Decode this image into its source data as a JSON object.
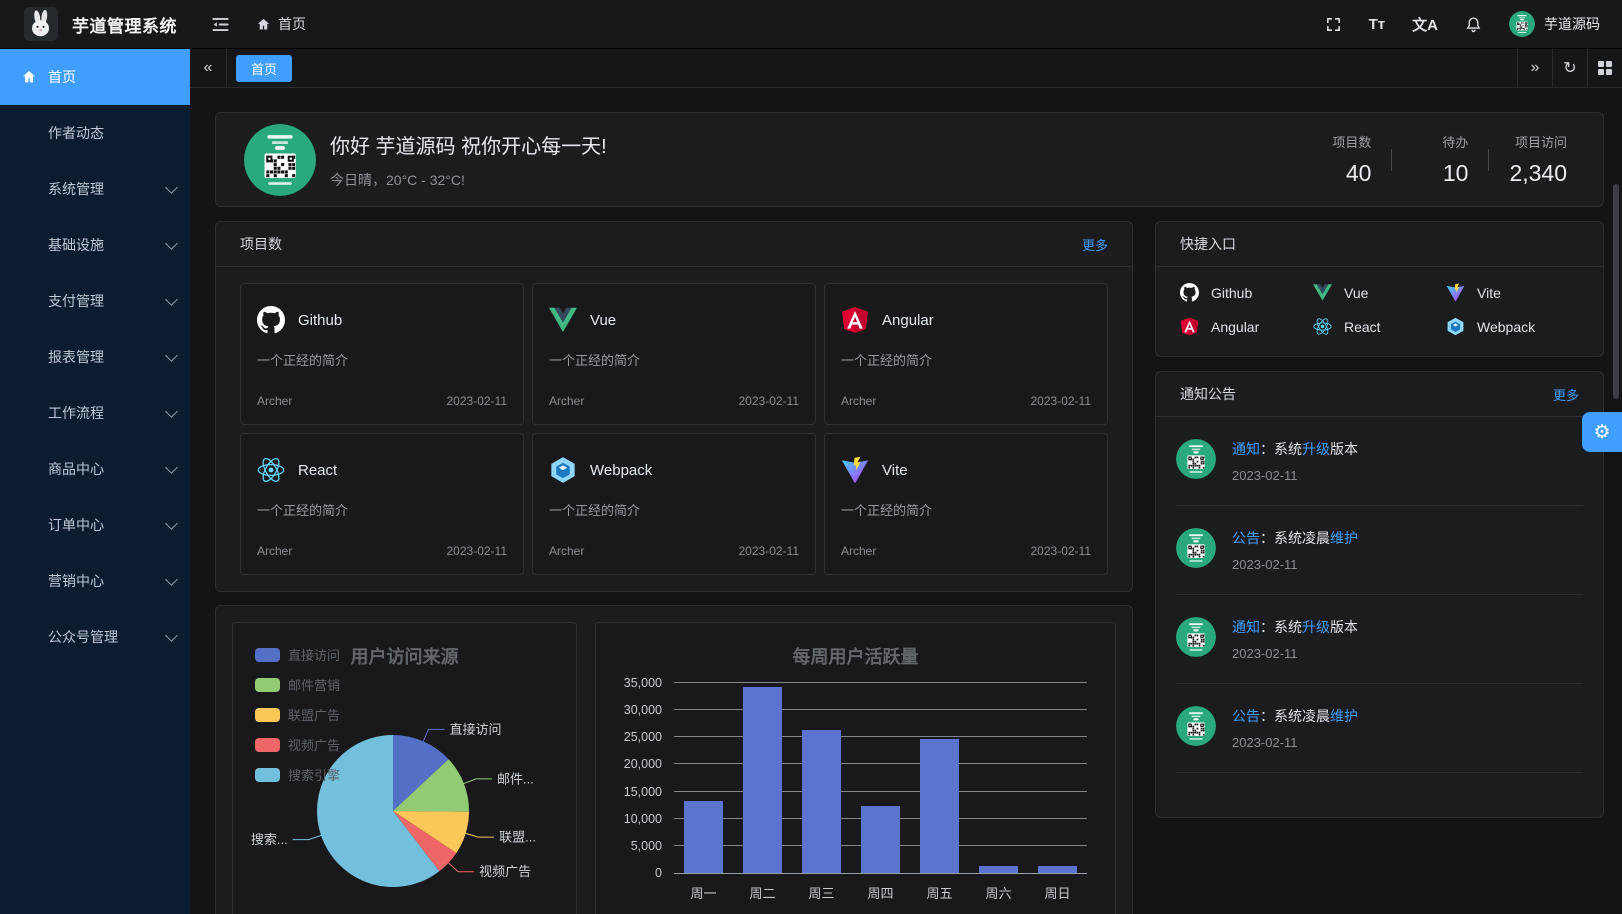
{
  "topbar": {
    "title": "芋道管理系统",
    "breadcrumb_home": "首页",
    "username": "芋道源码",
    "font_icon_text": "Tᴛ",
    "lang_icon_text": "文A"
  },
  "glyphs": {
    "collapse": "«",
    "expand": "»",
    "refresh": "↻",
    "gear": "⚙"
  },
  "sidebar": {
    "items": [
      {
        "label": "首页",
        "icon": "home",
        "active": true,
        "chevron": false
      },
      {
        "label": "作者动态",
        "icon": "",
        "active": false,
        "chevron": false
      },
      {
        "label": "系统管理",
        "icon": "",
        "active": false,
        "chevron": true
      },
      {
        "label": "基础设施",
        "icon": "",
        "active": false,
        "chevron": true
      },
      {
        "label": "支付管理",
        "icon": "",
        "active": false,
        "chevron": true
      },
      {
        "label": "报表管理",
        "icon": "",
        "active": false,
        "chevron": true
      },
      {
        "label": "工作流程",
        "icon": "",
        "active": false,
        "chevron": true
      },
      {
        "label": "商品中心",
        "icon": "",
        "active": false,
        "chevron": true
      },
      {
        "label": "订单中心",
        "icon": "",
        "active": false,
        "chevron": true
      },
      {
        "label": "营销中心",
        "icon": "",
        "active": false,
        "chevron": true
      },
      {
        "label": "公众号管理",
        "icon": "",
        "active": false,
        "chevron": true
      }
    ]
  },
  "tabbar": {
    "active_tab": "首页"
  },
  "welcome": {
    "greeting": "你好 芋道源码 祝你开心每一天!",
    "weather": "今日晴，20°C - 32°C!",
    "stats": [
      {
        "label": "项目数",
        "value": "40"
      },
      {
        "label": "待办",
        "value": "10"
      },
      {
        "label": "项目访问",
        "value": "2,340"
      }
    ]
  },
  "projects": {
    "title": "项目数",
    "more_label": "更多",
    "items": [
      {
        "name": "Github",
        "icon": "github",
        "desc": "一个正经的简介",
        "author": "Archer",
        "date": "2023-02-11"
      },
      {
        "name": "Vue",
        "icon": "vue",
        "desc": "一个正经的简介",
        "author": "Archer",
        "date": "2023-02-11"
      },
      {
        "name": "Angular",
        "icon": "angular",
        "desc": "一个正经的简介",
        "author": "Archer",
        "date": "2023-02-11"
      },
      {
        "name": "React",
        "icon": "react",
        "desc": "一个正经的简介",
        "author": "Archer",
        "date": "2023-02-11"
      },
      {
        "name": "Webpack",
        "icon": "webpack",
        "desc": "一个正经的简介",
        "author": "Archer",
        "date": "2023-02-11"
      },
      {
        "name": "Vite",
        "icon": "vite",
        "desc": "一个正经的简介",
        "author": "Archer",
        "date": "2023-02-11"
      }
    ]
  },
  "shortcuts": {
    "title": "快捷入口",
    "items": [
      {
        "name": "Github",
        "icon": "github"
      },
      {
        "name": "Vue",
        "icon": "vue"
      },
      {
        "name": "Vite",
        "icon": "vite"
      },
      {
        "name": "Angular",
        "icon": "angular"
      },
      {
        "name": "React",
        "icon": "react"
      },
      {
        "name": "Webpack",
        "icon": "webpack"
      }
    ]
  },
  "notices": {
    "title": "通知公告",
    "more_label": "更多",
    "items": [
      {
        "segments": [
          {
            "text": "通知",
            "highlight": true
          },
          {
            "text": "：系统",
            "highlight": false
          },
          {
            "text": "升级",
            "highlight": true
          },
          {
            "text": "版本",
            "highlight": false
          }
        ],
        "date": "2023-02-11"
      },
      {
        "segments": [
          {
            "text": "公告",
            "highlight": true
          },
          {
            "text": "：系统凌晨",
            "highlight": false
          },
          {
            "text": "维护",
            "highlight": true
          }
        ],
        "date": "2023-02-11"
      },
      {
        "segments": [
          {
            "text": "通知",
            "highlight": true
          },
          {
            "text": "：系统",
            "highlight": false
          },
          {
            "text": "升级",
            "highlight": true
          },
          {
            "text": "版本",
            "highlight": false
          }
        ],
        "date": "2023-02-11"
      },
      {
        "segments": [
          {
            "text": "公告",
            "highlight": true
          },
          {
            "text": "：系统凌晨",
            "highlight": false
          },
          {
            "text": "维护",
            "highlight": true
          }
        ],
        "date": "2023-02-11"
      }
    ]
  },
  "chart_data": [
    {
      "type": "pie",
      "title": "用户访问来源",
      "legend_position": "left-top",
      "series": [
        {
          "name": "直接访问",
          "value": 335,
          "color": "#5470c6",
          "callout": "直接访问"
        },
        {
          "name": "邮件营销",
          "value": 310,
          "color": "#91cc75",
          "callout": "邮件..."
        },
        {
          "name": "联盟广告",
          "value": 234,
          "color": "#fac858",
          "callout": "联盟..."
        },
        {
          "name": "视频广告",
          "value": 135,
          "color": "#ee6666",
          "callout": "视频广告"
        },
        {
          "name": "搜索引擎",
          "value": 1548,
          "color": "#73c0de",
          "callout": "搜索..."
        }
      ]
    },
    {
      "type": "bar",
      "title": "每周用户活跃量",
      "categories": [
        "周一",
        "周二",
        "周三",
        "周四",
        "周五",
        "周六",
        "周日"
      ],
      "values": [
        13253,
        34235,
        26321,
        12340,
        24643,
        1322,
        1324
      ],
      "ylim": [
        0,
        35000
      ],
      "ytick_step": 5000,
      "bar_color": "#5b74ce",
      "grid": true
    }
  ]
}
